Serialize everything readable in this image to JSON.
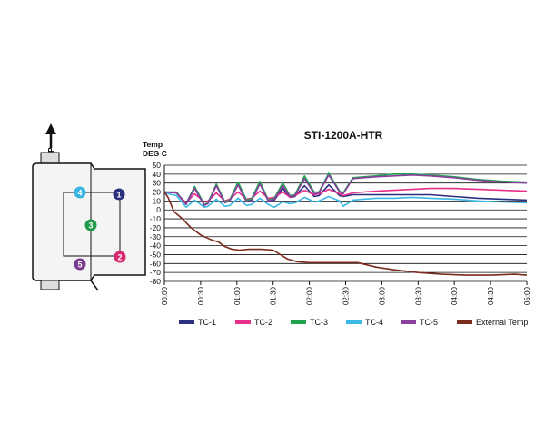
{
  "diagram": {
    "up_label": "UP",
    "badges": [
      {
        "label": "1",
        "color": "#2b2f80"
      },
      {
        "label": "2",
        "color": "#d6286f"
      },
      {
        "label": "3",
        "color": "#1e9a4a"
      },
      {
        "label": "4",
        "color": "#3ab5e3"
      },
      {
        "label": "5",
        "color": "#7a3a8f"
      }
    ]
  },
  "chart_data": {
    "type": "line",
    "title": "STI-1200A-HTR",
    "ylabel_line1": "Temp",
    "ylabel_line2": "DEG C",
    "ylim": [
      -80,
      50
    ],
    "yticks": [
      50,
      40,
      30,
      20,
      10,
      0,
      -10,
      -20,
      -30,
      -40,
      -50,
      -60,
      -70,
      -80
    ],
    "xlim": [
      0,
      300
    ],
    "xticks": [
      {
        "v": 0,
        "label": "00:00"
      },
      {
        "v": 30,
        "label": "00:30"
      },
      {
        "v": 60,
        "label": "01:00"
      },
      {
        "v": 90,
        "label": "01:30"
      },
      {
        "v": 120,
        "label": "02:00"
      },
      {
        "v": 150,
        "label": "02:30"
      },
      {
        "v": 180,
        "label": "03:00"
      },
      {
        "v": 210,
        "label": "03:30"
      },
      {
        "v": 240,
        "label": "04:00"
      },
      {
        "v": 270,
        "label": "04:30"
      },
      {
        "v": 300,
        "label": "05:00"
      }
    ],
    "grid": true,
    "legend_position": "bottom",
    "series": [
      {
        "name": "TC-1",
        "color": "#2b2f80",
        "x": [
          0,
          10,
          18,
          25,
          33,
          36,
          43,
          50,
          54,
          61,
          68,
          72,
          79,
          86,
          91,
          98,
          104,
          108,
          116,
          124,
          128,
          136,
          145,
          148,
          156,
          165,
          175,
          190,
          205,
          220,
          240,
          260,
          280,
          300
        ],
        "y": [
          20,
          19,
          7,
          26,
          6,
          7,
          28,
          9,
          10,
          29,
          10,
          11,
          30,
          10,
          11,
          24,
          14,
          15,
          27,
          15,
          16,
          28,
          16,
          15,
          17,
          17,
          17,
          17,
          17,
          17,
          15,
          13,
          12,
          11
        ]
      },
      {
        "name": "TC-2",
        "color": "#e52f8a",
        "x": [
          0,
          10,
          18,
          25,
          33,
          36,
          43,
          50,
          54,
          61,
          68,
          72,
          79,
          86,
          91,
          98,
          104,
          108,
          116,
          124,
          128,
          136,
          145,
          148,
          156,
          165,
          175,
          190,
          205,
          220,
          240,
          260,
          280,
          300
        ],
        "y": [
          20,
          19,
          8,
          18,
          9,
          10,
          19,
          10,
          12,
          20,
          12,
          13,
          21,
          13,
          14,
          20,
          14,
          16,
          22,
          17,
          18,
          23,
          18,
          16,
          19,
          20,
          21,
          22,
          23,
          24,
          24,
          23,
          22,
          21
        ]
      },
      {
        "name": "TC-3",
        "color": "#21a24e",
        "x": [
          0,
          10,
          18,
          25,
          33,
          36,
          43,
          50,
          54,
          61,
          68,
          72,
          79,
          86,
          91,
          98,
          104,
          108,
          116,
          124,
          128,
          136,
          145,
          148,
          156,
          165,
          175,
          190,
          205,
          220,
          240,
          260,
          280,
          300
        ],
        "y": [
          20,
          20,
          6,
          26,
          6,
          8,
          29,
          9,
          11,
          31,
          11,
          12,
          32,
          11,
          13,
          30,
          16,
          17,
          38,
          20,
          20,
          41,
          21,
          19,
          36,
          37,
          38,
          40,
          40,
          39,
          37,
          34,
          32,
          31
        ]
      },
      {
        "name": "TC-4",
        "color": "#3bb8e6",
        "x": [
          0,
          10,
          18,
          25,
          33,
          36,
          43,
          50,
          54,
          61,
          68,
          72,
          79,
          86,
          91,
          98,
          104,
          108,
          116,
          124,
          128,
          136,
          145,
          148,
          156,
          165,
          175,
          190,
          205,
          220,
          240,
          260,
          280,
          300
        ],
        "y": [
          19,
          16,
          3,
          11,
          3,
          4,
          12,
          4,
          5,
          13,
          5,
          6,
          13,
          6,
          3,
          9,
          7,
          8,
          14,
          9,
          10,
          15,
          10,
          4,
          11,
          12,
          13,
          13,
          14,
          13,
          12,
          10,
          9,
          8
        ]
      },
      {
        "name": "TC-5",
        "color": "#8a3ea0",
        "x": [
          0,
          10,
          18,
          25,
          33,
          36,
          43,
          50,
          54,
          61,
          68,
          72,
          79,
          86,
          91,
          98,
          104,
          108,
          116,
          124,
          128,
          136,
          145,
          148,
          156,
          165,
          175,
          190,
          205,
          220,
          240,
          260,
          280,
          300
        ],
        "y": [
          20,
          19,
          6,
          24,
          5,
          7,
          27,
          8,
          10,
          28,
          9,
          10,
          29,
          10,
          12,
          27,
          15,
          16,
          35,
          18,
          19,
          39,
          20,
          18,
          35,
          36,
          37,
          38,
          39,
          38,
          36,
          33,
          31,
          30
        ]
      },
      {
        "name": "External Temp",
        "color": "#7b2a1e",
        "x": [
          0,
          3,
          8,
          15,
          22,
          30,
          38,
          45,
          50,
          56,
          62,
          70,
          80,
          90,
          96,
          102,
          110,
          120,
          130,
          145,
          160,
          175,
          190,
          210,
          230,
          250,
          270,
          290,
          300
        ],
        "y": [
          20,
          14,
          -2,
          -10,
          -20,
          -28,
          -33,
          -36,
          -41,
          -44,
          -45,
          -44,
          -44,
          -45,
          -50,
          -55,
          -58,
          -59,
          -59,
          -59,
          -59,
          -64,
          -67,
          -70,
          -72,
          -73,
          -73,
          -72,
          -73
        ]
      }
    ]
  }
}
